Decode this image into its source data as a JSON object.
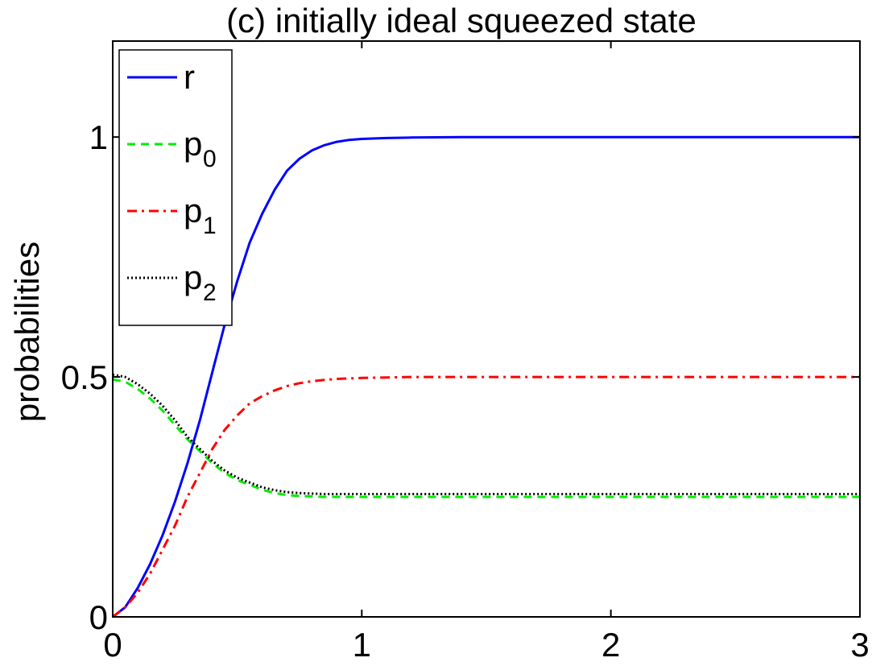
{
  "chart_data": {
    "type": "line",
    "title": "(c)  initially ideal squeezed state",
    "xlabel": "",
    "ylabel": "probabilities",
    "xlim": [
      0,
      3
    ],
    "ylim": [
      0,
      1.2
    ],
    "x_ticks": [
      "0",
      "1",
      "2",
      "3"
    ],
    "y_ticks": [
      "0",
      "0.5",
      "1"
    ],
    "grid": false,
    "legend_position": "top-left",
    "x": [
      0,
      0.05,
      0.1,
      0.15,
      0.2,
      0.25,
      0.3,
      0.35,
      0.4,
      0.45,
      0.5,
      0.55,
      0.6,
      0.65,
      0.7,
      0.75,
      0.8,
      0.85,
      0.9,
      0.95,
      1.0,
      1.1,
      1.2,
      1.4,
      1.6,
      2.0,
      2.5,
      3.0
    ],
    "series": [
      {
        "name": "r",
        "label_main": "r",
        "label_sub": "",
        "color": "#0000ff",
        "dash": "solid",
        "values": [
          0,
          0.02,
          0.06,
          0.11,
          0.17,
          0.24,
          0.32,
          0.41,
          0.51,
          0.61,
          0.7,
          0.78,
          0.84,
          0.89,
          0.93,
          0.955,
          0.972,
          0.983,
          0.99,
          0.994,
          0.996,
          0.998,
          0.999,
          1.0,
          1.0,
          1.0,
          1.0,
          1.0
        ]
      },
      {
        "name": "p0",
        "label_main": "p",
        "label_sub": "0",
        "color": "#00ee00",
        "dash": "dashed",
        "values": [
          0.495,
          0.49,
          0.475,
          0.455,
          0.43,
          0.4,
          0.37,
          0.345,
          0.32,
          0.3,
          0.285,
          0.275,
          0.265,
          0.258,
          0.254,
          0.252,
          0.251,
          0.25,
          0.25,
          0.25,
          0.25,
          0.25,
          0.25,
          0.25,
          0.25,
          0.25,
          0.25,
          0.25
        ]
      },
      {
        "name": "p1",
        "label_main": "p",
        "label_sub": "1",
        "color": "#ff0000",
        "dash": "dashdot",
        "values": [
          0,
          0.02,
          0.05,
          0.09,
          0.14,
          0.19,
          0.25,
          0.3,
          0.35,
          0.39,
          0.42,
          0.445,
          0.46,
          0.472,
          0.481,
          0.487,
          0.491,
          0.494,
          0.496,
          0.497,
          0.498,
          0.499,
          0.5,
          0.5,
          0.5,
          0.5,
          0.5,
          0.5
        ]
      },
      {
        "name": "p2",
        "label_main": "p",
        "label_sub": "2",
        "color": "#000000",
        "dash": "dotted",
        "values": [
          0.505,
          0.5,
          0.485,
          0.465,
          0.44,
          0.41,
          0.375,
          0.35,
          0.325,
          0.305,
          0.29,
          0.28,
          0.27,
          0.264,
          0.26,
          0.258,
          0.257,
          0.256,
          0.256,
          0.256,
          0.256,
          0.256,
          0.256,
          0.256,
          0.256,
          0.256,
          0.256,
          0.256
        ]
      }
    ]
  }
}
